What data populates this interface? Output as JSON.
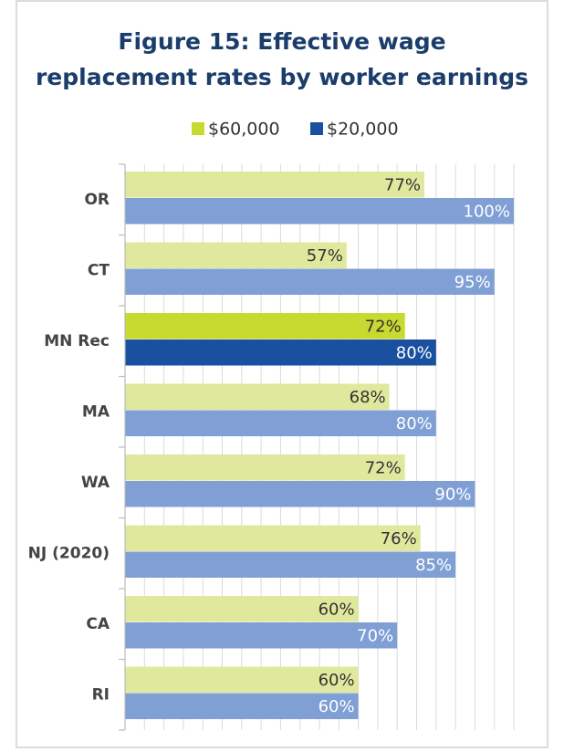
{
  "chart_data": {
    "type": "bar",
    "orientation": "horizontal",
    "title_lines": [
      "Figure 15:  Effective wage",
      "replacement rates by worker earnings"
    ],
    "categories": [
      "OR",
      "CT",
      "MN Rec",
      "MA",
      "WA",
      "NJ (2020)",
      "CA",
      "RI"
    ],
    "highlight": "MN Rec",
    "series": [
      {
        "name": "$60,000",
        "color": "#c8d92f",
        "muted_color": "#e0e89e",
        "label_color": "#333333",
        "values": [
          77,
          57,
          72,
          68,
          72,
          76,
          60,
          60
        ],
        "value_labels": [
          "77%",
          "57%",
          "72%",
          "68%",
          "72%",
          "76%",
          "60%",
          "60%"
        ]
      },
      {
        "name": "$20,000",
        "color": "#1a50a0",
        "muted_color": "#7f9fd5",
        "label_color": "#ffffff",
        "values": [
          100,
          95,
          80,
          80,
          90,
          85,
          70,
          60
        ],
        "value_labels": [
          "100%",
          "95%",
          "80%",
          "80%",
          "90%",
          "85%",
          "70%",
          "60%"
        ]
      }
    ],
    "xlim": [
      0,
      100
    ],
    "xticks": [
      0,
      5,
      10,
      15,
      20,
      25,
      30,
      35,
      40,
      45,
      50,
      55,
      60,
      65,
      70,
      75,
      80,
      85,
      90,
      95,
      100
    ],
    "xtick_labels": false,
    "grid": true,
    "legend": "top"
  }
}
